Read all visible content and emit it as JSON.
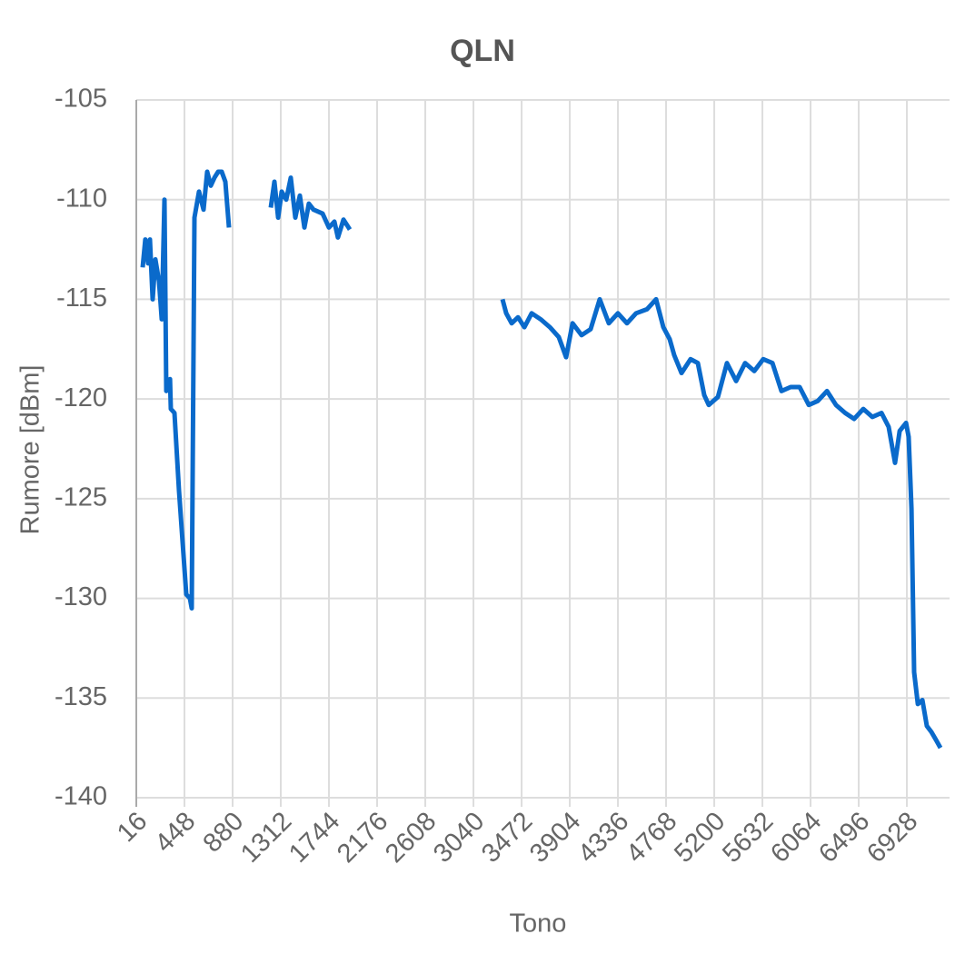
{
  "chart_data": {
    "type": "line",
    "title": "QLN",
    "x_label": "Tono",
    "y_label": "Rumore [dBm]",
    "x": [
      73,
      97,
      122,
      138,
      163,
      187,
      220,
      244,
      269,
      285,
      318,
      326,
      358,
      399,
      464,
      497,
      513,
      538,
      578,
      619,
      652,
      684,
      717,
      750,
      782,
      815,
      847,
      null,
      1222,
      1255,
      1288,
      1320,
      1361,
      1402,
      1442,
      1483,
      1524,
      1564,
      1605,
      1687,
      1744,
      1793,
      1825,
      1874,
      1931,
      null,
      3301,
      3334,
      3383,
      3440,
      3497,
      3562,
      3643,
      3725,
      3806,
      3871,
      3929,
      4010,
      4091,
      4173,
      4254,
      4336,
      4417,
      4499,
      4597,
      4678,
      4743,
      4800,
      4841,
      4906,
      4988,
      5053,
      5110,
      5151,
      5233,
      5314,
      5396,
      5477,
      5559,
      5640,
      5722,
      5803,
      5885,
      5966,
      6048,
      6129,
      6211,
      6292,
      6374,
      6455,
      6537,
      6618,
      6700,
      6765,
      6822,
      6863,
      6920,
      6944,
      6969,
      6993,
      7026,
      7067,
      7107,
      7148,
      7189,
      7229
    ],
    "series": [
      {
        "color": "#0a6acb",
        "values": [
          -113.4,
          -112,
          -113.2,
          -112,
          -115,
          -113,
          -114.1,
          -116,
          -110,
          -119.6,
          -119,
          -120.5,
          -120.7,
          -124.6,
          -129.8,
          -130,
          -130.5,
          -110.9,
          -109.6,
          -110.5,
          -108.6,
          -109.3,
          -108.9,
          -108.6,
          -108.6,
          -109.1,
          -111.4,
          null,
          -110.4,
          -109.1,
          -110.9,
          -109.6,
          -110,
          -108.9,
          -110.9,
          -109.8,
          -111.4,
          -110.2,
          -110.5,
          -110.7,
          -111.4,
          -111.1,
          -111.9,
          -111,
          -111.5,
          null,
          -115,
          -115.7,
          -116.2,
          -115.9,
          -116.4,
          -115.7,
          -116,
          -116.4,
          -116.9,
          -117.9,
          -116.2,
          -116.8,
          -116.5,
          -115,
          -116.2,
          -115.7,
          -116.2,
          -115.7,
          -115.5,
          -115,
          -116.4,
          -117,
          -117.8,
          -118.7,
          -118,
          -118.2,
          -119.8,
          -120.3,
          -119.9,
          -118.2,
          -119.1,
          -118.2,
          -118.6,
          -118,
          -118.2,
          -119.6,
          -119.4,
          -119.4,
          -120.3,
          -120.1,
          -119.6,
          -120.3,
          -120.7,
          -121,
          -120.5,
          -120.9,
          -120.7,
          -121.4,
          -123.2,
          -121.6,
          -121.2,
          -121.9,
          -125.5,
          -133.7,
          -135.3,
          -135.1,
          -136.4,
          -136.7,
          -137.1,
          -137.5
        ]
      }
    ],
    "xlim": [
      16,
      7270
    ],
    "xticks": [
      16,
      448,
      880,
      1312,
      1744,
      2176,
      2608,
      3040,
      3472,
      3904,
      4336,
      4768,
      5200,
      5632,
      6064,
      6496,
      6928
    ],
    "ylim": [
      -140,
      -105
    ],
    "yticks": [
      -140,
      -135,
      -130,
      -125,
      -120,
      -115,
      -110,
      -105
    ],
    "grid": true
  }
}
